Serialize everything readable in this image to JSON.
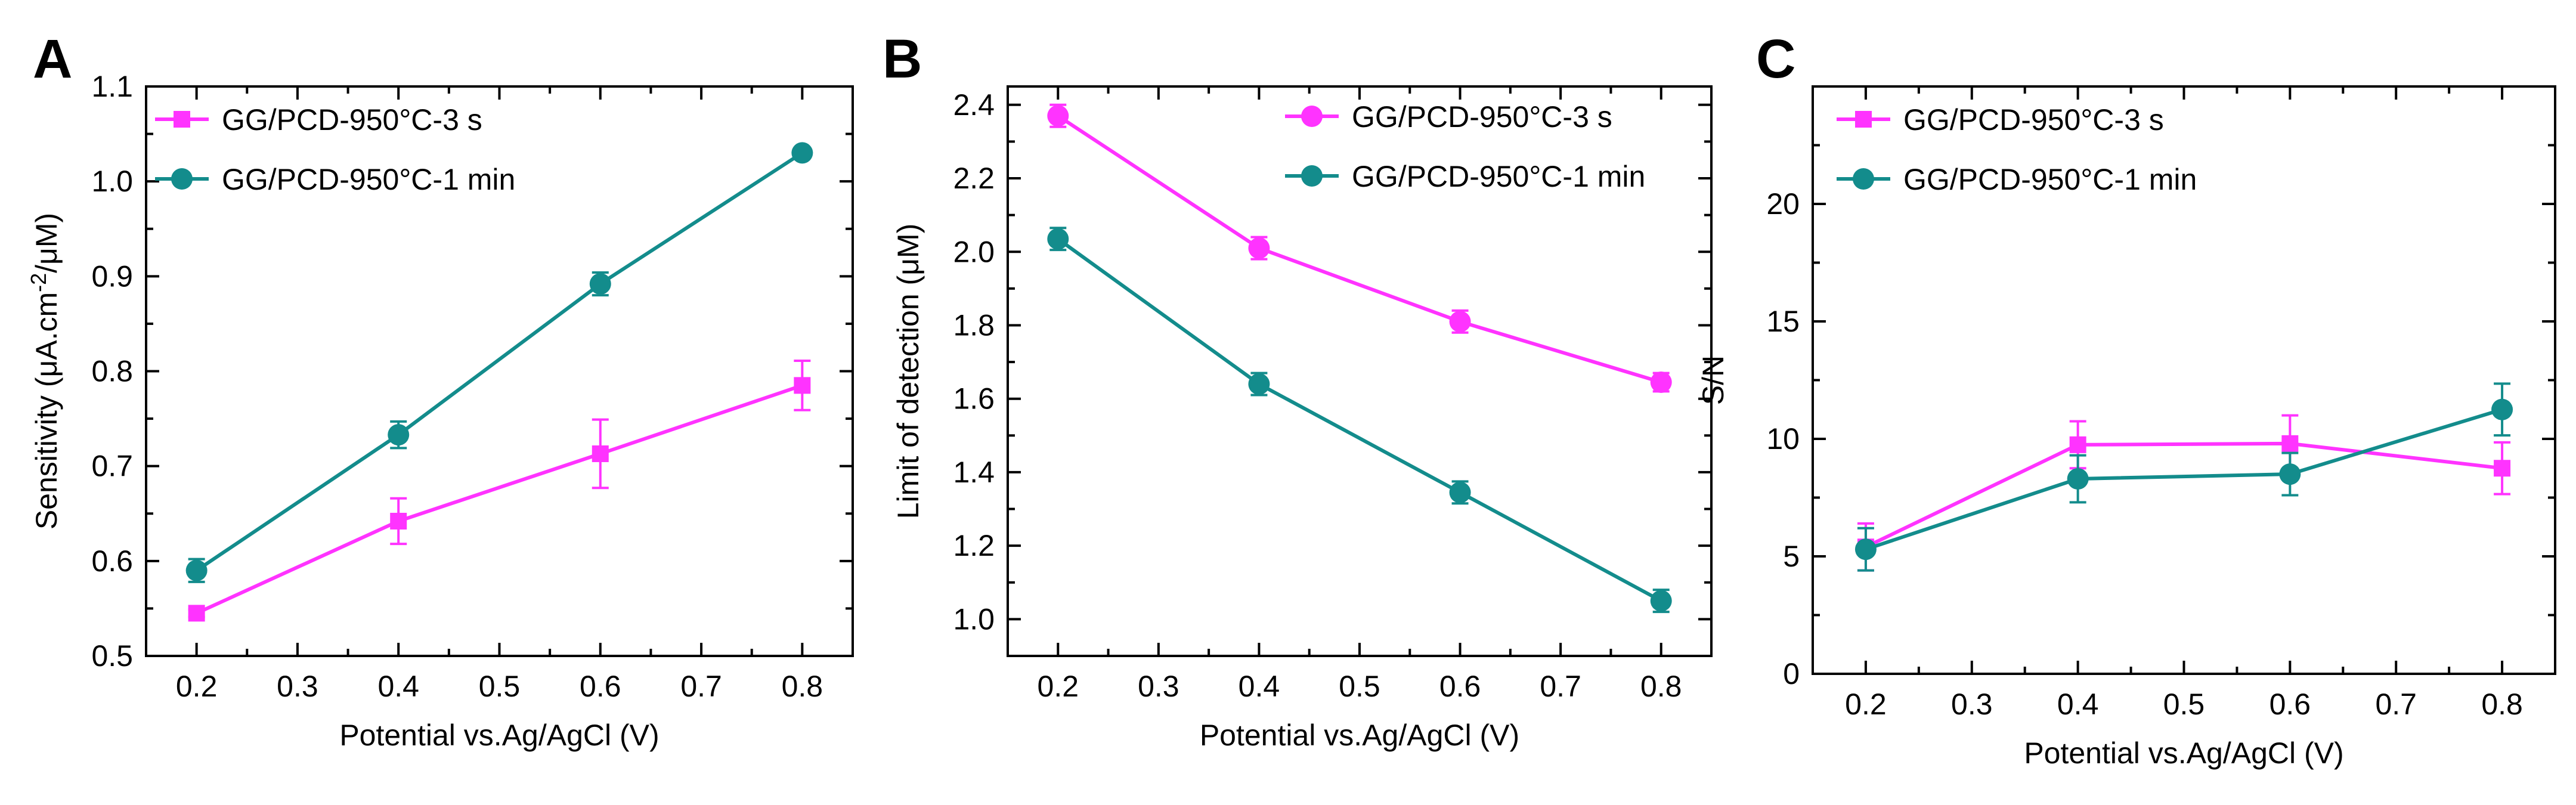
{
  "panels": {
    "A": {
      "label": "A"
    },
    "B": {
      "label": "B"
    },
    "C": {
      "label": "C"
    }
  },
  "colors": {
    "magenta": "#FF33FF",
    "teal": "#138C8C",
    "axis": "#000000"
  },
  "chart_data": [
    {
      "type": "line",
      "panel_label": "A",
      "xlabel": "Potential vs.Ag/AgCl (V)",
      "ylabel": "Sensitivity (μA.cm-2/μM)",
      "ylabel_parts": {
        "before": "Sensitivity (μA.cm",
        "sup": "-2",
        "after": "/μM)"
      },
      "xlim": [
        0.15,
        0.85
      ],
      "ylim": [
        0.5,
        1.1
      ],
      "x_ticks": [
        0.2,
        0.3,
        0.4,
        0.5,
        0.6,
        0.7,
        0.8
      ],
      "x_tick_labels": [
        "0.2",
        "0.3",
        "0.4",
        "0.5",
        "0.6",
        "0.7",
        "0.8"
      ],
      "y_ticks": [
        0.5,
        0.6,
        0.7,
        0.8,
        0.9,
        1.0,
        1.1
      ],
      "y_tick_labels": [
        "0.5",
        "0.6",
        "0.7",
        "0.8",
        "0.9",
        "1.0",
        "1.1"
      ],
      "legend_position": "top-left",
      "series": [
        {
          "name": "GG/PCD-950°C-3 s",
          "color": "#FF33FF",
          "marker": "square",
          "x": [
            0.2,
            0.4,
            0.6,
            0.8
          ],
          "y": [
            0.545,
            0.642,
            0.713,
            0.785
          ],
          "error": [
            0.004,
            0.024,
            0.036,
            0.026
          ]
        },
        {
          "name": "GG/PCD-950°C-1 min",
          "color": "#138C8C",
          "marker": "circle",
          "x": [
            0.2,
            0.4,
            0.6,
            0.8
          ],
          "y": [
            0.59,
            0.733,
            0.892,
            1.03
          ],
          "error": [
            0.012,
            0.014,
            0.012,
            0.004
          ]
        }
      ]
    },
    {
      "type": "line",
      "panel_label": "B",
      "xlabel": "Potential vs.Ag/AgCl (V)",
      "ylabel": "Limit of detection (μM)",
      "xlim": [
        0.15,
        0.85
      ],
      "ylim": [
        0.9,
        2.45
      ],
      "x_ticks": [
        0.2,
        0.3,
        0.4,
        0.5,
        0.6,
        0.7,
        0.8
      ],
      "x_tick_labels": [
        "0.2",
        "0.3",
        "0.4",
        "0.5",
        "0.6",
        "0.7",
        "0.8"
      ],
      "y_ticks": [
        1.0,
        1.2,
        1.4,
        1.6,
        1.8,
        2.0,
        2.2,
        2.4
      ],
      "y_tick_labels": [
        "1.0",
        "1.2",
        "1.4",
        "1.6",
        "1.8",
        "2.0",
        "2.2",
        "2.4"
      ],
      "legend_position": "top-right",
      "series": [
        {
          "name": "GG/PCD-950°C-3 s",
          "color": "#FF33FF",
          "marker": "circle",
          "x": [
            0.2,
            0.4,
            0.6,
            0.8
          ],
          "y": [
            2.37,
            2.01,
            1.81,
            1.645
          ],
          "error": [
            0.03,
            0.03,
            0.03,
            0.025
          ]
        },
        {
          "name": "GG/PCD-950°C-1 min",
          "color": "#138C8C",
          "marker": "circle",
          "x": [
            0.2,
            0.4,
            0.6,
            0.8
          ],
          "y": [
            2.035,
            1.64,
            1.345,
            1.05
          ],
          "error": [
            0.03,
            0.03,
            0.03,
            0.03
          ]
        }
      ]
    },
    {
      "type": "line",
      "panel_label": "C",
      "xlabel": "Potential vs.Ag/AgCl (V)",
      "ylabel": "S/N",
      "xlim": [
        0.15,
        0.85
      ],
      "ylim": [
        0,
        25
      ],
      "x_ticks": [
        0.2,
        0.3,
        0.4,
        0.5,
        0.6,
        0.7,
        0.8
      ],
      "x_tick_labels": [
        "0.2",
        "0.3",
        "0.4",
        "0.5",
        "0.6",
        "0.7",
        "0.8"
      ],
      "y_ticks": [
        0,
        5,
        10,
        15,
        20
      ],
      "y_tick_labels": [
        "0",
        "5",
        "10",
        "15",
        "20"
      ],
      "legend_position": "top-left",
      "series": [
        {
          "name": "GG/PCD-950°C-3 s",
          "color": "#FF33FF",
          "marker": "square",
          "x": [
            0.2,
            0.4,
            0.6,
            0.8
          ],
          "y": [
            5.4,
            9.75,
            9.8,
            8.75
          ],
          "error": [
            1.0,
            1.0,
            1.2,
            1.1
          ]
        },
        {
          "name": "GG/PCD-950°C-1 min",
          "color": "#138C8C",
          "marker": "circle",
          "x": [
            0.2,
            0.4,
            0.6,
            0.8
          ],
          "y": [
            5.3,
            8.3,
            8.5,
            11.25
          ],
          "error": [
            0.9,
            1.0,
            0.9,
            1.1
          ]
        }
      ]
    }
  ]
}
